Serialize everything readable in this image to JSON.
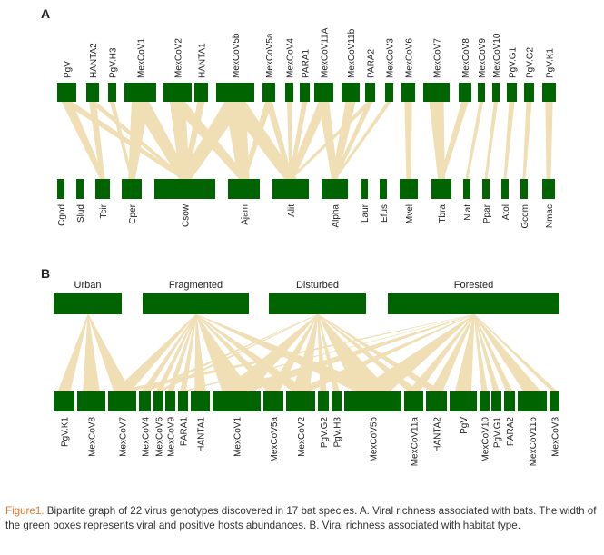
{
  "panel_a": {
    "letter": "A",
    "viruses": [
      "PgV",
      "HANTA2",
      "PgV.H3",
      "MexCoV1",
      "MexCoV2",
      "HANTA1",
      "MexCoV5b",
      "MexCoV5a",
      "MexCoV4",
      "PARA1",
      "MexCoV11A",
      "MexCoV11b",
      "PARA2",
      "MexCoV3",
      "MexCoV6",
      "MexCoV7",
      "MexCoV8",
      "MexCoV9",
      "MexCoV10",
      "PgV.G1",
      "PgV.G2",
      "PgV.K1"
    ],
    "bats": [
      "Cgod",
      "Slud",
      "Tcir",
      "Cper",
      "Csow",
      "Ajam",
      "Alit",
      "Alpha",
      "Laur",
      "Efus",
      "Mvel",
      "Tbra",
      "Nlat",
      "Ppar",
      "Atol",
      "Gcom",
      "Nmac"
    ]
  },
  "panel_b": {
    "letter": "B",
    "habitats": [
      "Urban",
      "Fragmented",
      "Disturbed",
      "Forested"
    ],
    "viruses": [
      "PgV.K1",
      "MexCoV8",
      "MexCoV7",
      "MexCoV4",
      "MexCoV6",
      "MexCoV9",
      "PARA1",
      "HANTA1",
      "MexCoV1",
      "MexCoV5a",
      "MexCoV2",
      "PgV.G2",
      "PgV.H3",
      "MexCoV5b",
      "MexCoV11a",
      "HANTA2",
      "PgV",
      "MexCoV10",
      "PgV.G1",
      "PARA2",
      "MexCoV11b",
      "MexCoV3"
    ]
  },
  "colors": {
    "box": "#006400",
    "link": "#f0deb4",
    "caption_label": "#e8772e"
  },
  "caption": {
    "label": "Figure1.",
    "text": " Bipartite graph of 22 virus genotypes discovered in 17 bat species. A. Viral richness associated with bats. The width of the green boxes represents viral and positive hosts abundances. B. Viral richness associated with habitat type."
  }
}
